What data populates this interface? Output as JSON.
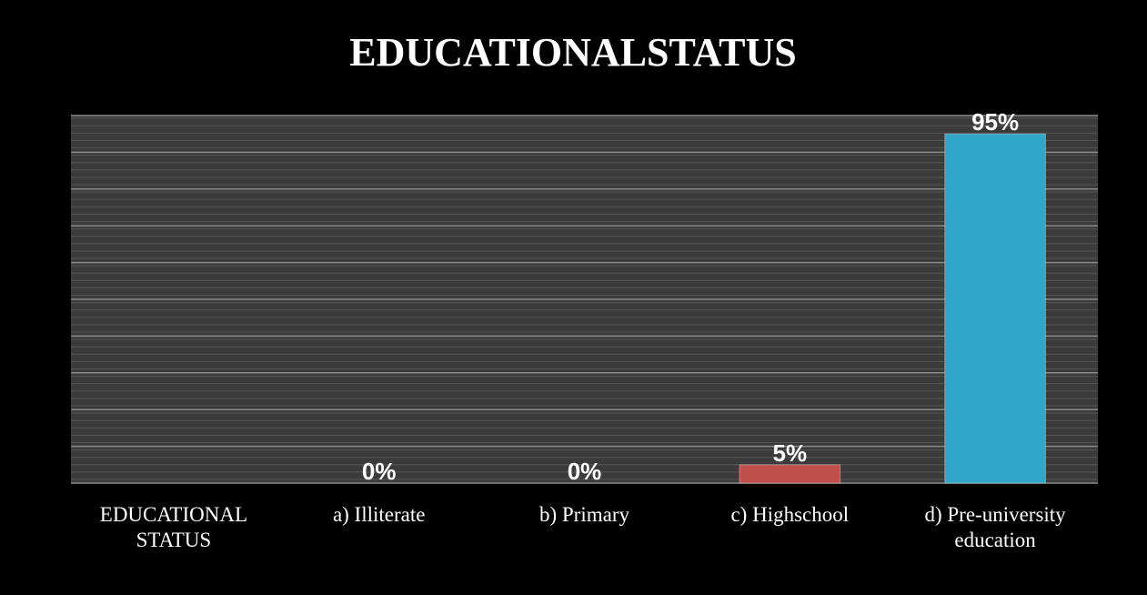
{
  "chart_data": {
    "type": "bar",
    "title": "EDUCATIONALSTATUS",
    "categories": [
      "EDUCATIONAL STATUS",
      "a) Illiterate",
      "b) Primary",
      "c) Highschool",
      "d) Pre-university education"
    ],
    "values": [
      null,
      0,
      0,
      5,
      95
    ],
    "value_labels": [
      null,
      "0%",
      "0%",
      "5%",
      "95%"
    ],
    "colors": [
      "#c0504d",
      "#c0504d",
      "#c0504d",
      "#c0504d",
      "#31a6c8"
    ],
    "ylim": [
      0,
      100
    ],
    "yticks": [
      0,
      10,
      20,
      30,
      40,
      50,
      60,
      70,
      80,
      90,
      100
    ],
    "grid": true
  }
}
